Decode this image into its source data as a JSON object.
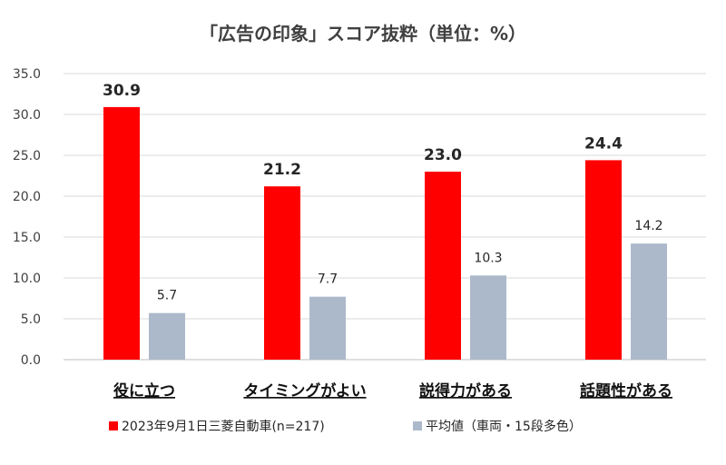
{
  "chart_data": {
    "type": "bar",
    "title": "「広告の印象」スコア抜粋（単位：%）",
    "categories": [
      "役に立つ",
      "タイミングがよい",
      "説得力がある",
      "話題性がある"
    ],
    "series": [
      {
        "name": "2023年9月1日三菱自動車(n=217)",
        "values": [
          30.9,
          21.2,
          23.0,
          24.4
        ],
        "labels": [
          "30.9",
          "21.2",
          "23.0",
          "24.4"
        ],
        "color": "#ff0000"
      },
      {
        "name": "平均値（車両・15段多色）",
        "values": [
          5.7,
          7.7,
          10.3,
          14.2
        ],
        "labels": [
          "5.7",
          "7.7",
          "10.3",
          "14.2"
        ],
        "color": "#acb9ca"
      }
    ],
    "ylim": [
      0,
      35
    ],
    "yticks": [
      "0.0",
      "5.0",
      "10.0",
      "15.0",
      "20.0",
      "25.0",
      "30.0",
      "35.0"
    ],
    "grid": true,
    "legend": "bottom"
  }
}
